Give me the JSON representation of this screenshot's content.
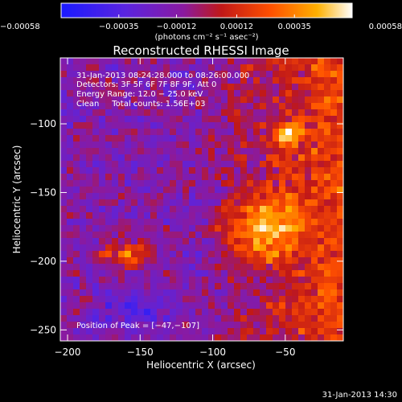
{
  "chart_data": {
    "type": "heatmap",
    "title": "Reconstructed RHESSI Image",
    "xlabel": "Heliocentric X (arcsec)",
    "ylabel": "Heliocentric Y (arcsec)",
    "xlim": [
      -205,
      -10
    ],
    "ylim": [
      -258,
      -52
    ],
    "x_ticks": [
      -200,
      -150,
      -100,
      -50
    ],
    "y_ticks": [
      -100,
      -150,
      -200,
      -250
    ],
    "x_tick_labels": [
      "−200",
      "−150",
      "−100",
      "−50"
    ],
    "y_tick_labels": [
      "−100",
      "−150",
      "−200",
      "−250"
    ],
    "colorbar": {
      "range": [
        -0.00058,
        0.00058
      ],
      "ticks": [
        -0.00058,
        -0.00035,
        -0.00012,
        0.00012,
        0.00035,
        0.00058
      ],
      "tick_labels": [
        "−0.00058",
        "−0.00035",
        "−0.00012",
        "0.00012",
        "0.00035",
        "0.00058"
      ],
      "label": "(photons cm⁻² s⁻¹ asec⁻²)",
      "colors": [
        "#1a1aff",
        "#6a1fd0",
        "#8a1aa0",
        "#c01818",
        "#ff5000",
        "#ffb000",
        "#ffffff"
      ]
    },
    "annotations": {
      "time_range": "31-Jan-2013 08:24:28.000 to 08:26:00.000",
      "detectors": "Detectors: 3F 5F 6F 7F 8F 9F, Att 0",
      "energy_range": "Energy Range: 12.0 − 25.0 keV",
      "method_counts": "Clean     Total counts: 1.56E+03",
      "peak": "Position of Peak = [−47,−107]"
    },
    "peak_position": [
      -47,
      -107
    ]
  },
  "footer": {
    "timestamp": "31-Jan-2013 14:30"
  }
}
